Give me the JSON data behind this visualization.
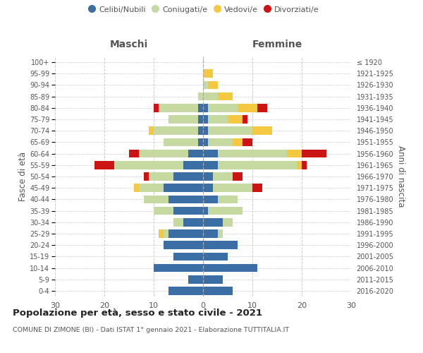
{
  "age_groups": [
    "0-4",
    "5-9",
    "10-14",
    "15-19",
    "20-24",
    "25-29",
    "30-34",
    "35-39",
    "40-44",
    "45-49",
    "50-54",
    "55-59",
    "60-64",
    "65-69",
    "70-74",
    "75-79",
    "80-84",
    "85-89",
    "90-94",
    "95-99",
    "100+"
  ],
  "birth_years": [
    "2016-2020",
    "2011-2015",
    "2006-2010",
    "2001-2005",
    "1996-2000",
    "1991-1995",
    "1986-1990",
    "1981-1985",
    "1976-1980",
    "1971-1975",
    "1966-1970",
    "1961-1965",
    "1956-1960",
    "1951-1955",
    "1946-1950",
    "1941-1945",
    "1936-1940",
    "1931-1935",
    "1926-1930",
    "1921-1925",
    "≤ 1920"
  ],
  "maschi": {
    "celibi": [
      7,
      3,
      10,
      6,
      8,
      7,
      4,
      6,
      7,
      8,
      6,
      4,
      3,
      1,
      1,
      1,
      1,
      0,
      0,
      0,
      0
    ],
    "coniugati": [
      0,
      0,
      0,
      0,
      0,
      1,
      2,
      4,
      5,
      5,
      5,
      14,
      10,
      7,
      9,
      6,
      8,
      1,
      0,
      0,
      0
    ],
    "vedovi": [
      0,
      0,
      0,
      0,
      0,
      1,
      0,
      0,
      0,
      1,
      0,
      0,
      0,
      0,
      1,
      0,
      0,
      0,
      0,
      0,
      0
    ],
    "divorziati": [
      0,
      0,
      0,
      0,
      0,
      0,
      0,
      0,
      0,
      0,
      1,
      4,
      2,
      0,
      0,
      0,
      1,
      0,
      0,
      0,
      0
    ]
  },
  "femmine": {
    "nubili": [
      6,
      4,
      11,
      5,
      7,
      3,
      4,
      1,
      3,
      2,
      2,
      3,
      3,
      1,
      1,
      1,
      1,
      0,
      0,
      0,
      0
    ],
    "coniugate": [
      0,
      0,
      0,
      0,
      0,
      1,
      2,
      7,
      4,
      8,
      4,
      16,
      14,
      5,
      9,
      4,
      6,
      3,
      1,
      0,
      0
    ],
    "vedove": [
      0,
      0,
      0,
      0,
      0,
      0,
      0,
      0,
      0,
      0,
      0,
      1,
      3,
      2,
      4,
      3,
      4,
      3,
      2,
      2,
      0
    ],
    "divorziate": [
      0,
      0,
      0,
      0,
      0,
      0,
      0,
      0,
      0,
      2,
      2,
      1,
      5,
      2,
      0,
      1,
      2,
      0,
      0,
      0,
      0
    ]
  },
  "colors": {
    "celibi": "#3a6ea5",
    "coniugati": "#c5d9a0",
    "vedovi": "#f5c842",
    "divorziati": "#cc1414"
  },
  "bg_color": "#ffffff",
  "grid_color": "#cccccc",
  "text_color": "#555555",
  "xlim": 30,
  "title": "Popolazione per età, sesso e stato civile - 2021",
  "subtitle": "COMUNE DI ZIMONE (BI) - Dati ISTAT 1° gennaio 2021 - Elaborazione TUTTITALIA.IT",
  "ylabel_left": "Fasce di età",
  "ylabel_right": "Anni di nascita",
  "label_maschi": "Maschi",
  "label_femmine": "Femmine",
  "legend_labels": [
    "Celibi/Nubili",
    "Coniugati/e",
    "Vedovi/e",
    "Divorziati/e"
  ]
}
